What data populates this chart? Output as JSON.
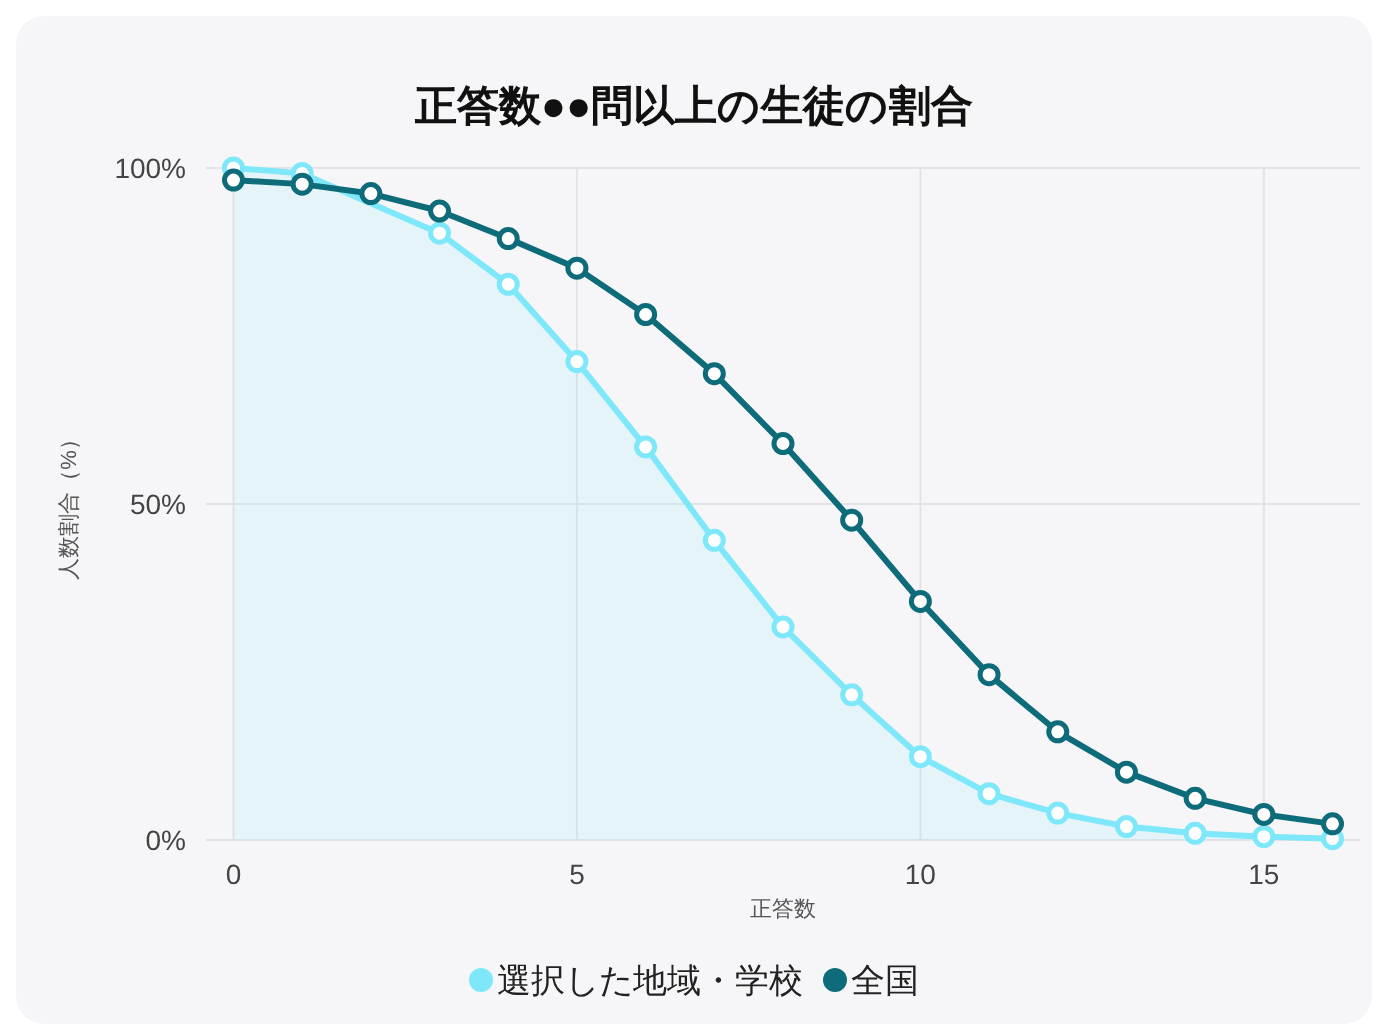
{
  "chart_data": {
    "type": "line",
    "title": "正答数●●問以上の生徒の割合",
    "xlabel": "正答数",
    "ylabel": "人数割合（%）",
    "x": [
      0,
      1,
      2,
      3,
      4,
      5,
      6,
      7,
      8,
      9,
      10,
      11,
      12,
      13,
      14,
      15,
      16
    ],
    "series": [
      {
        "name": "選択した地域・学校",
        "type": "area",
        "color": "#7ee8fa",
        "values": [
          100,
          99.2,
          null,
          90.3,
          82.7,
          71.2,
          58.5,
          44.6,
          31.7,
          21.6,
          12.4,
          6.9,
          4.0,
          2.0,
          1.0,
          0.5,
          0.2
        ]
      },
      {
        "name": "全国",
        "type": "line",
        "color": "#0e6b7a",
        "values": [
          98.2,
          97.6,
          96.2,
          93.6,
          89.5,
          85.1,
          78.2,
          69.4,
          59.0,
          47.6,
          35.5,
          24.6,
          16.1,
          10.1,
          6.2,
          3.8,
          2.4
        ]
      }
    ],
    "xlim": [
      -0.4,
      16.4
    ],
    "ylim": [
      0,
      100
    ],
    "xticks": [
      0,
      5,
      10,
      15
    ],
    "yticks": [
      {
        "value": 0,
        "label": "0%"
      },
      {
        "value": 50,
        "label": "50%"
      },
      {
        "value": 100,
        "label": "100%"
      }
    ],
    "grid": true,
    "legend": "bottom",
    "marker": "circle",
    "line_style": "solid"
  }
}
